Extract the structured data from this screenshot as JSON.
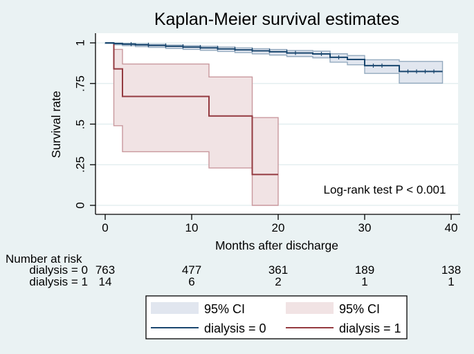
{
  "title": {
    "text": "Kaplan-Meier survival estimates",
    "color": "#1a476f"
  },
  "colors": {
    "page_bg": "#eaf2f3",
    "plot_bg": "#ffffff",
    "grid": "#dfecee",
    "axis": "#000000"
  },
  "axes": {
    "x": {
      "label": "Months after discharge",
      "ticks": [
        "0",
        "10",
        "20",
        "30",
        "40"
      ],
      "values": [
        0,
        10,
        20,
        30,
        40
      ],
      "range": [
        0,
        40
      ]
    },
    "y": {
      "label": "Survival rate",
      "ticks": [
        "0",
        ".25",
        ".5",
        ".75",
        "1"
      ],
      "values": [
        0,
        0.25,
        0.5,
        0.75,
        1
      ],
      "range": [
        0,
        1
      ]
    }
  },
  "annotation": "Log-rank test P < 0.001",
  "risk_table": {
    "header": "Number at risk",
    "rows": [
      {
        "label": "dialysis = 0",
        "counts": [
          "763",
          "477",
          "361",
          "189",
          "138"
        ]
      },
      {
        "label": "dialysis = 1",
        "counts": [
          "14",
          "6",
          "2",
          "1",
          "1"
        ]
      }
    ]
  },
  "legend": {
    "items": [
      {
        "label": "95% CI",
        "type": "band",
        "color": "#e1e6ef"
      },
      {
        "label": "95% CI",
        "type": "band",
        "color": "#f1e3e4"
      },
      {
        "label": "dialysis = 0",
        "type": "line",
        "color": "#1a476f"
      },
      {
        "label": "dialysis = 1",
        "type": "line",
        "color": "#943a40"
      }
    ]
  },
  "chart_data": {
    "type": "line",
    "subtype": "kaplan-meier-step",
    "title": "Kaplan-Meier survival estimates",
    "xlabel": "Months after discharge",
    "ylabel": "Survival rate",
    "xlim": [
      0,
      40
    ],
    "ylim": [
      0,
      1
    ],
    "grid": "horizontal",
    "legend_position": "bottom",
    "series": [
      {
        "name": "dialysis = 0",
        "color": "#1a476f",
        "band_fill": "#e1e6ef",
        "band_edge": "#94aabf",
        "segments": [
          {
            "x0": 0,
            "x1": 1,
            "s": 1.0,
            "lo": 0.996,
            "hi": 1.0
          },
          {
            "x0": 1,
            "x1": 2,
            "s": 0.996,
            "lo": 0.988,
            "hi": 0.999
          },
          {
            "x0": 2,
            "x1": 3.5,
            "s": 0.992,
            "lo": 0.983,
            "hi": 0.997
          },
          {
            "x0": 3.5,
            "x1": 5,
            "s": 0.988,
            "lo": 0.977,
            "hi": 0.994
          },
          {
            "x0": 5,
            "x1": 7,
            "s": 0.984,
            "lo": 0.972,
            "hi": 0.991
          },
          {
            "x0": 7,
            "x1": 9,
            "s": 0.979,
            "lo": 0.966,
            "hi": 0.987
          },
          {
            "x0": 9,
            "x1": 11,
            "s": 0.974,
            "lo": 0.96,
            "hi": 0.983
          },
          {
            "x0": 11,
            "x1": 13,
            "s": 0.969,
            "lo": 0.954,
            "hi": 0.979
          },
          {
            "x0": 13,
            "x1": 15,
            "s": 0.963,
            "lo": 0.947,
            "hi": 0.974
          },
          {
            "x0": 15,
            "x1": 17,
            "s": 0.957,
            "lo": 0.94,
            "hi": 0.969
          },
          {
            "x0": 17,
            "x1": 19,
            "s": 0.951,
            "lo": 0.932,
            "hi": 0.964
          },
          {
            "x0": 19,
            "x1": 21,
            "s": 0.945,
            "lo": 0.925,
            "hi": 0.959
          },
          {
            "x0": 21,
            "x1": 24,
            "s": 0.938,
            "lo": 0.916,
            "hi": 0.953
          },
          {
            "x0": 24,
            "x1": 26,
            "s": 0.932,
            "lo": 0.908,
            "hi": 0.949
          },
          {
            "x0": 26,
            "x1": 28,
            "s": 0.911,
            "lo": 0.881,
            "hi": 0.933
          },
          {
            "x0": 28,
            "x1": 30,
            "s": 0.898,
            "lo": 0.865,
            "hi": 0.922
          },
          {
            "x0": 30,
            "x1": 34,
            "s": 0.86,
            "lo": 0.812,
            "hi": 0.896
          },
          {
            "x0": 34,
            "x1": 39,
            "s": 0.824,
            "lo": 0.752,
            "hi": 0.886
          }
        ],
        "censor_marks_x": [
          3,
          5,
          7,
          9,
          11,
          13,
          15,
          17,
          19,
          21,
          22,
          25,
          27,
          31,
          32,
          35,
          36,
          37,
          38
        ]
      },
      {
        "name": "dialysis = 1",
        "color": "#943a40",
        "band_fill": "#f1e3e4",
        "band_edge": "#c9989d",
        "segments": [
          {
            "x0": 0,
            "x1": 1,
            "s": 1.0,
            "lo": null,
            "hi": null
          },
          {
            "x0": 1,
            "x1": 2,
            "s": 0.84,
            "lo": 0.49,
            "hi": 0.96
          },
          {
            "x0": 2,
            "x1": 12,
            "s": 0.67,
            "lo": 0.33,
            "hi": 0.87
          },
          {
            "x0": 12,
            "x1": 17,
            "s": 0.55,
            "lo": 0.23,
            "hi": 0.79
          },
          {
            "x0": 17,
            "x1": 20,
            "s": 0.19,
            "lo": 0.0,
            "hi": 0.54
          }
        ],
        "censor_marks_x": []
      }
    ],
    "at_risk": {
      "times": [
        0,
        10,
        20,
        30,
        40
      ],
      "groups": [
        {
          "name": "dialysis = 0",
          "counts": [
            763,
            477,
            361,
            189,
            138
          ]
        },
        {
          "name": "dialysis = 1",
          "counts": [
            14,
            6,
            2,
            1,
            1
          ]
        }
      ]
    },
    "annotations": [
      "Log-rank test P < 0.001"
    ]
  }
}
